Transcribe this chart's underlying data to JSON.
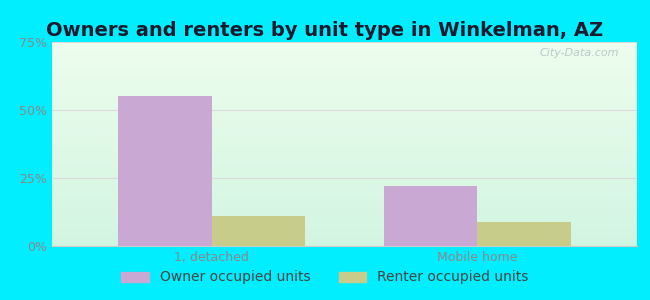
{
  "title": "Owners and renters by unit type in Winkelman, AZ",
  "categories": [
    "1, detached",
    "Mobile home"
  ],
  "owner_values": [
    55.0,
    22.0
  ],
  "renter_values": [
    11.0,
    9.0
  ],
  "owner_color": "#c9a8d4",
  "renter_color": "#c8cc8a",
  "ylim": [
    0,
    75
  ],
  "yticks": [
    0,
    25,
    50,
    75
  ],
  "ytick_labels": [
    "0%",
    "25%",
    "50%",
    "75%"
  ],
  "background_outer": "#00eeff",
  "grid_color": "#ddd8dd",
  "bar_width": 0.35,
  "title_fontsize": 14,
  "tick_fontsize": 9,
  "legend_fontsize": 10,
  "watermark": "City-Data.com",
  "title_color": "#1a1a2e",
  "tick_color": "#888888",
  "legend_color": "#444444"
}
